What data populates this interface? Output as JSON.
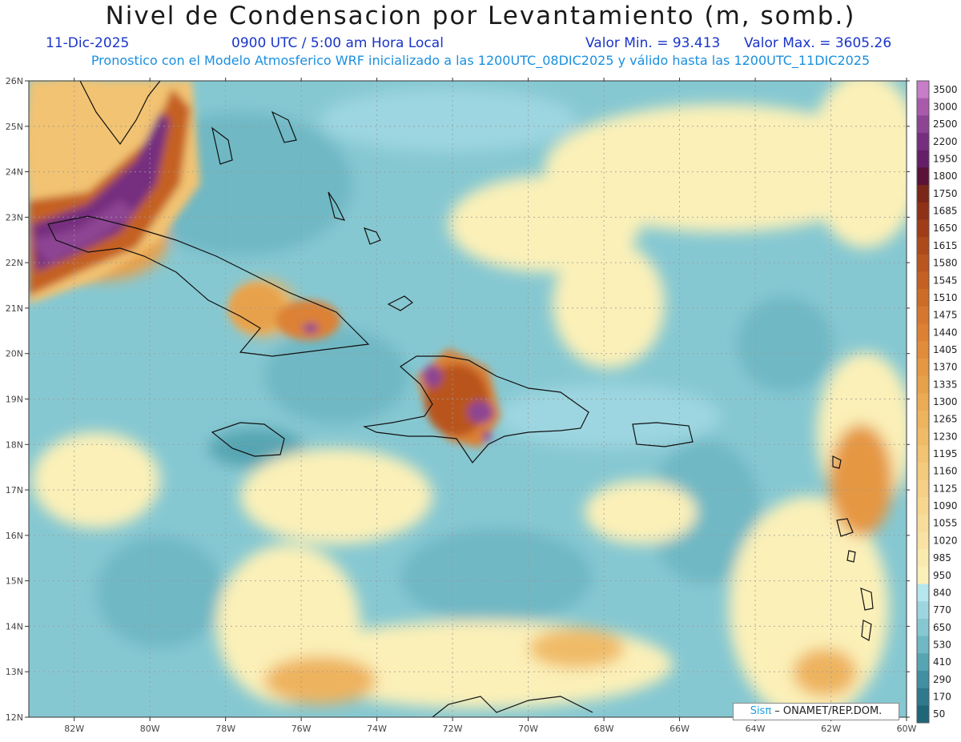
{
  "header": {
    "title": "Nivel de Condensacion por Levantamiento (m, somb.)",
    "date": "11-Dic-2025",
    "time": "0900 UTC / 5:00 am Hora Local",
    "valor_min": "Valor Min. = 93.413",
    "valor_max": "Valor Max. = 3605.26",
    "forecast_note": "Pronostico con el Modelo Atmosferico WRF inicializado a las 1200UTC_08DIC2025 y válido hasta las  1200UTC_11DIC2025"
  },
  "axes": {
    "lon_labels": [
      "82W",
      "80W",
      "78W",
      "76W",
      "74W",
      "72W",
      "70W",
      "68W",
      "66W",
      "64W",
      "62W",
      "60W"
    ],
    "lat_labels": [
      "26N",
      "25N",
      "24N",
      "23N",
      "22N",
      "21N",
      "20N",
      "19N",
      "18N",
      "17N",
      "16N",
      "15N",
      "14N",
      "13N",
      "12N"
    ],
    "lon_range": [
      -83.2,
      -60
    ],
    "lat_range": [
      12,
      26
    ]
  },
  "colorbar": {
    "labels": [
      "3500",
      "3000",
      "2500",
      "2200",
      "1950",
      "1800",
      "1750",
      "1685",
      "1650",
      "1615",
      "1580",
      "1545",
      "1510",
      "1475",
      "1440",
      "1405",
      "1370",
      "1335",
      "1300",
      "1265",
      "1230",
      "1195",
      "1160",
      "1125",
      "1090",
      "1055",
      "1020",
      "985",
      "950",
      "840",
      "770",
      "650",
      "530",
      "410",
      "290",
      "170",
      "50"
    ],
    "colors": [
      "#c77dc7",
      "#a95aab",
      "#8d4493",
      "#762f7f",
      "#641f68",
      "#5a1238",
      "#7a2618",
      "#8e3116",
      "#9f3d18",
      "#ad4a1b",
      "#b9551f",
      "#c46024",
      "#cd6b29",
      "#d5772e",
      "#dc8134",
      "#e18c3b",
      "#e59742",
      "#e8a14b",
      "#ebaa54",
      "#eeb35e",
      "#f0bb68",
      "#f2c372",
      "#f4ca7c",
      "#f5d086",
      "#f7d790",
      "#f8dd9a",
      "#f9e2a3",
      "#faeaae",
      "#fbf0b8",
      "#b6e6ee",
      "#9dd6e0",
      "#86c8d2",
      "#6fb8c4",
      "#57a5b3",
      "#418fa0",
      "#2e7a8c",
      "#1f6678"
    ]
  },
  "credit": {
    "sis": "Sisπ",
    "rest": " – ONAMET/REP.DOM."
  }
}
